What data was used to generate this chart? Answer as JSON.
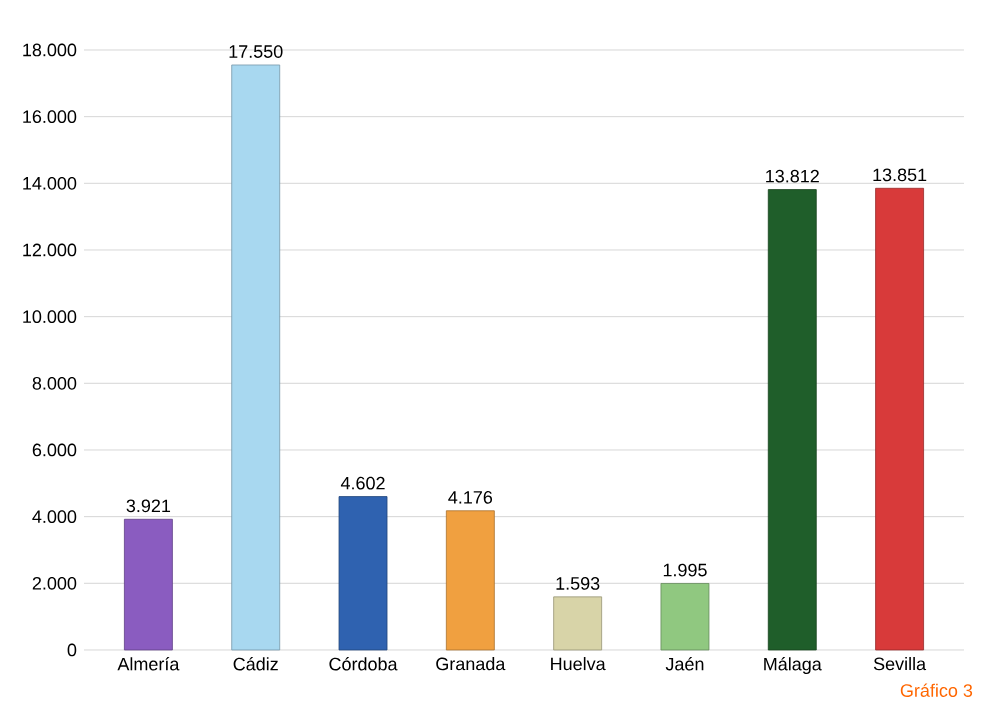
{
  "chart_data": {
    "type": "bar",
    "categories": [
      "Almería",
      "Cádiz",
      "Córdoba",
      "Granada",
      "Huelva",
      "Jaén",
      "Málaga",
      "Sevilla"
    ],
    "values": [
      3921,
      17550,
      4602,
      4176,
      1593,
      1995,
      13812,
      13851
    ],
    "value_labels": [
      "3.921",
      "17.550",
      "4.602",
      "4.176",
      "1.593",
      "1.995",
      "13.812",
      "13.851"
    ],
    "colors": [
      "#8a5cc0",
      "#a8d8f0",
      "#2f62b0",
      "#f0a040",
      "#d8d4a8",
      "#90c880",
      "#1f5e2a",
      "#d83a3a"
    ],
    "ylim": [
      0,
      18000
    ],
    "yticks": [
      {
        "value": 0,
        "label": "0"
      },
      {
        "value": 2000,
        "label": "2.000"
      },
      {
        "value": 4000,
        "label": "4.000"
      },
      {
        "value": 6000,
        "label": "6.000"
      },
      {
        "value": 8000,
        "label": "8.000"
      },
      {
        "value": 10000,
        "label": "10.000"
      },
      {
        "value": 12000,
        "label": "12.000"
      },
      {
        "value": 14000,
        "label": "14.000"
      },
      {
        "value": 16000,
        "label": "16.000"
      },
      {
        "value": 18000,
        "label": "18.000"
      }
    ],
    "grid": "y",
    "annotations": [
      "Gráfico 3"
    ]
  }
}
